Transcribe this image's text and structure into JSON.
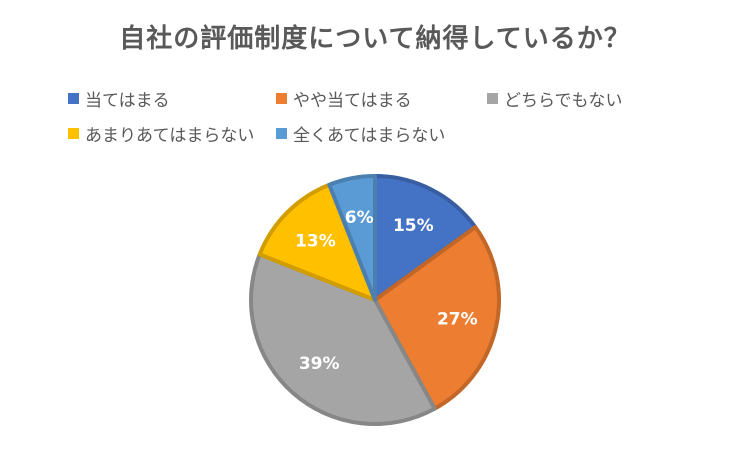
{
  "chart_data": {
    "type": "pie",
    "title": "自社の評価制度について納得しているか？",
    "categories": [
      "当てはまる",
      "やや当てはまる",
      "どちらでもない",
      "あまりあてはまらない",
      "全くあてはまらない"
    ],
    "values": [
      15,
      27,
      39,
      13,
      6
    ],
    "labels": [
      "15%",
      "27%",
      "39%",
      "13%",
      "6%"
    ],
    "colors": [
      "#4472C4",
      "#ED7D31",
      "#A5A5A5",
      "#FFC000",
      "#5B9BD5"
    ],
    "legend_position": "top"
  }
}
